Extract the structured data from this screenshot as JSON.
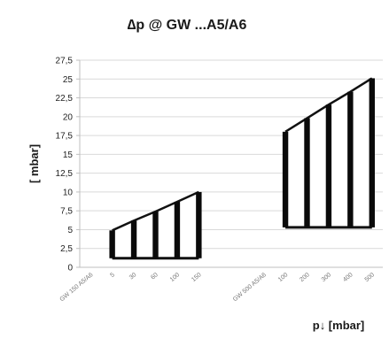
{
  "chart_data": {
    "type": "area",
    "title": "∆p @ GW ...A5/A6",
    "xlabel": "p↓ [mbar]",
    "ylabel": "[ mbar]",
    "ylim": [
      0,
      27.5
    ],
    "yticks": [
      "0",
      "2,5",
      "5",
      "7,5",
      "10",
      "12,5",
      "15",
      "17,5",
      "20",
      "22,5",
      "25",
      "27,5"
    ],
    "grid": true,
    "categories": [
      "GW 150 A5/A6",
      "5",
      "30",
      "60",
      "100",
      "150",
      "",
      "",
      "GW 500 A5/A6",
      "100",
      "200",
      "300",
      "400",
      "500"
    ],
    "series": [
      {
        "values": [
          null,
          1.2,
          1.2,
          1.2,
          1.2,
          1.2,
          null,
          null,
          null,
          5.3,
          5.3,
          5.3,
          5.3,
          5.3
        ]
      },
      {
        "values": [
          null,
          4.9,
          6.2,
          7.4,
          8.7,
          10.0,
          null,
          null,
          null,
          18.0,
          19.8,
          21.6,
          23.3,
          25.1
        ]
      }
    ]
  }
}
